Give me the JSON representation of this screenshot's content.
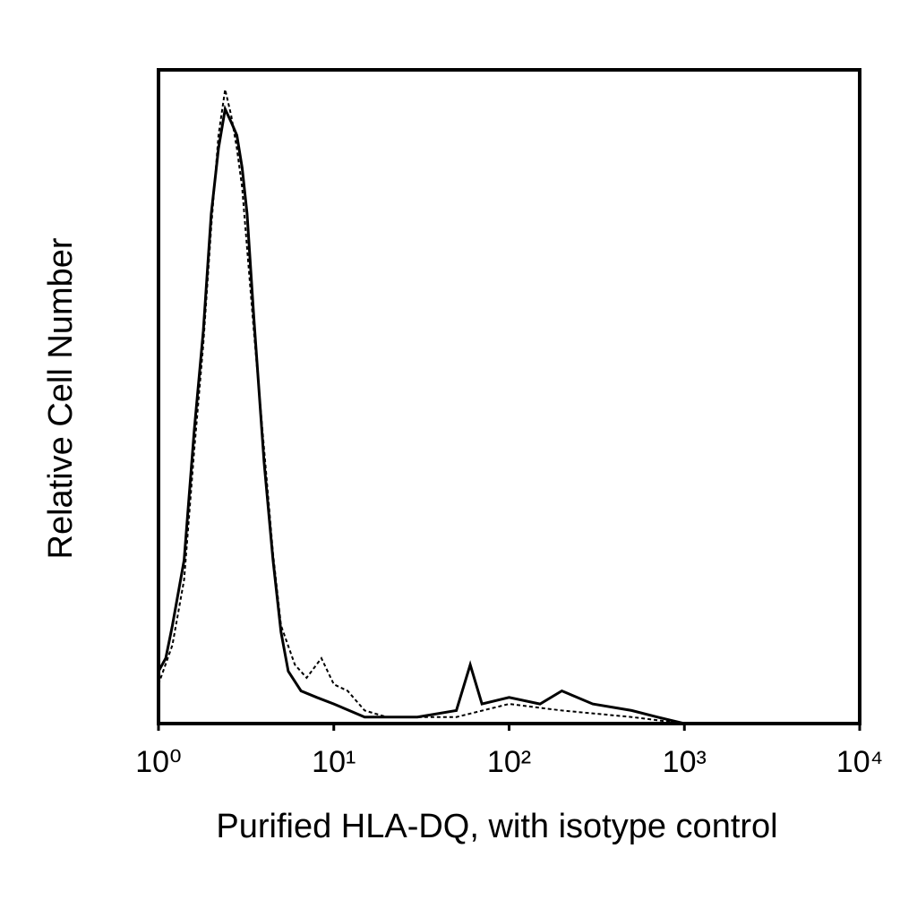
{
  "chart_data": {
    "type": "line",
    "xlabel": "Purified HLA-DQ, with isotype control",
    "ylabel": "Relative Cell Number",
    "xscale": "log",
    "xlim": [
      1,
      10000
    ],
    "ylim": [
      0,
      100
    ],
    "xticks": [
      {
        "value": 1,
        "label": "10⁰"
      },
      {
        "value": 10,
        "label": "10¹"
      },
      {
        "value": 100,
        "label": "10²"
      },
      {
        "value": 1000,
        "label": "10³"
      },
      {
        "value": 10000,
        "label": "10⁴"
      }
    ],
    "series": [
      {
        "color": "#000000",
        "dashed": false,
        "x": [
          1.0,
          1.1,
          1.2,
          1.4,
          1.6,
          1.8,
          2.0,
          2.2,
          2.4,
          2.6,
          2.8,
          3.0,
          3.2,
          3.5,
          4.0,
          4.5,
          5.0,
          5.5,
          6.5,
          8,
          10,
          15,
          20,
          30,
          50,
          60,
          70,
          100,
          150,
          200,
          300,
          500,
          700,
          1000
        ],
        "values": [
          8,
          10,
          15,
          25,
          45,
          60,
          78,
          88,
          94,
          92,
          90,
          85,
          78,
          62,
          40,
          25,
          14,
          8,
          5,
          4,
          3,
          1,
          1,
          1,
          2,
          9,
          3,
          4,
          3,
          5,
          3,
          2,
          1,
          0
        ]
      },
      {
        "color": "#000000",
        "dashed": true,
        "x": [
          1.0,
          1.2,
          1.4,
          1.6,
          1.8,
          2.0,
          2.2,
          2.4,
          2.6,
          2.8,
          3.0,
          3.5,
          4.0,
          4.5,
          5,
          6,
          7,
          8.5,
          10,
          12,
          15,
          20,
          50,
          100,
          200,
          500,
          1000
        ],
        "values": [
          6,
          12,
          22,
          42,
          58,
          76,
          90,
          97,
          93,
          88,
          82,
          60,
          42,
          26,
          15,
          9,
          7,
          10,
          6,
          5,
          2,
          1,
          1,
          3,
          2,
          1,
          0
        ]
      }
    ]
  }
}
